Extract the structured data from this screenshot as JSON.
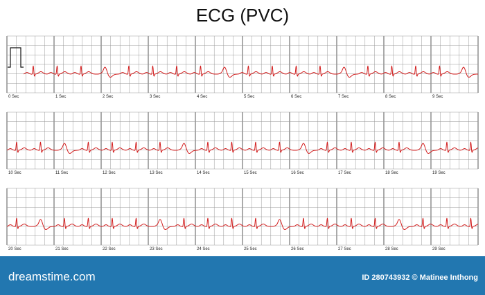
{
  "title": "ECG (PVC)",
  "strips": [
    {
      "labels": [
        "0 Sec",
        "1 Sec",
        "2 Sec",
        "3 Sec",
        "4 Sec",
        "5 Sec",
        "6 Sec",
        "7 Sec",
        "8 Sec",
        "9 Sec"
      ]
    },
    {
      "labels": [
        "10 Sec",
        "11 Sec",
        "12 Sec",
        "13 Sec",
        "14 Sec",
        "15 Sec",
        "16 Sec",
        "17 Sec",
        "18 Sec",
        "19 Sec"
      ]
    },
    {
      "labels": [
        "20 Sec",
        "21 Sec",
        "22 Sec",
        "23 Sec",
        "24 Sec",
        "25 Sec",
        "26 Sec",
        "27 Sec",
        "28 Sec",
        "29 Sec"
      ]
    }
  ],
  "footer": {
    "brand": "dreamstime.com",
    "credit": "ID 280743932 © Matinee Inthong"
  }
}
